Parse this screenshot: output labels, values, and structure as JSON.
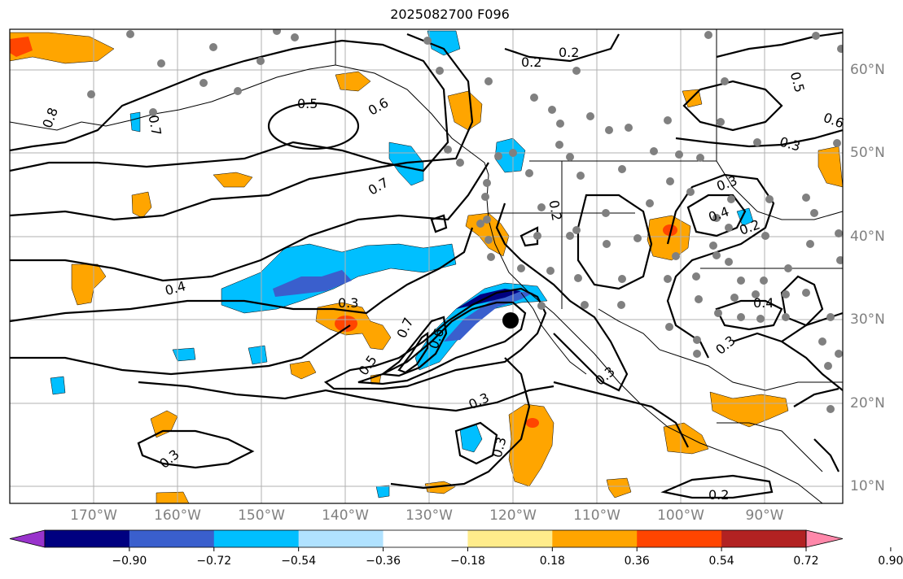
{
  "title": "2025082700 F096",
  "lon_labels": [
    "170°W",
    "160°W",
    "150°W",
    "140°W",
    "130°W",
    "120°W",
    "110°W",
    "100°W",
    "90°W"
  ],
  "lat_labels": [
    "60°N",
    "50°N",
    "40°N",
    "30°N",
    "20°N",
    "10°N"
  ],
  "contour_labels": [
    "0.8",
    "0.7",
    "0.5",
    "0.6",
    "0.7",
    "0.4",
    "0.3",
    "0.7",
    "0.6",
    "0.5",
    "0.3",
    "0.3",
    "0.2",
    "0.3",
    "0.2",
    "0.5",
    "0.6",
    "0.3",
    "0.3",
    "0.4",
    "0.2",
    "0.4",
    "0.3",
    "0.2",
    "0.3",
    "0.2"
  ],
  "colorbar": {
    "ticks": [
      "−0.90",
      "−0.72",
      "−0.54",
      "−0.36",
      "−0.18",
      "0.18",
      "0.36",
      "0.54",
      "0.72",
      "0.90"
    ],
    "colors": [
      "#9933cc",
      "#000080",
      "#3a5fcd",
      "#00bfff",
      "#b0e2ff",
      "#ffffff",
      "#ffec8b",
      "#ffa500",
      "#ff4500",
      "#b22222",
      "#ff88aa"
    ]
  }
}
